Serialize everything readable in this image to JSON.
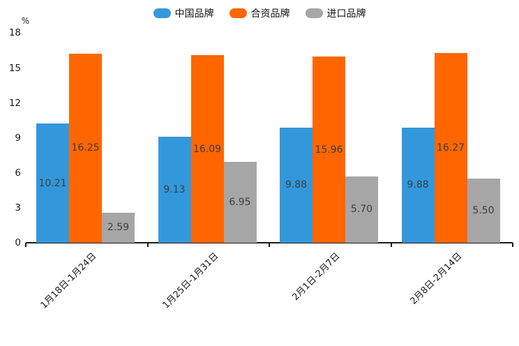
{
  "chart_data": {
    "type": "bar",
    "title": "",
    "categories": [
      "1月18日-1月24日",
      "1月25日-1月31日",
      "2月1日-2月7日",
      "2月8日-2月14日"
    ],
    "series": [
      {
        "name": "中国品牌",
        "color": "#3398DB",
        "values": [
          10.21,
          9.13,
          9.88,
          9.88
        ]
      },
      {
        "name": "合资品牌",
        "color": "#FF6600",
        "values": [
          16.25,
          16.09,
          15.96,
          16.27
        ]
      },
      {
        "name": "进口品牌",
        "color": "#A6A6A6",
        "values": [
          2.59,
          6.95,
          5.7,
          5.5
        ]
      }
    ],
    "ylabel": "%",
    "yticks": [
      0,
      3,
      6,
      9,
      12,
      15,
      18
    ],
    "ylim": [
      0,
      18
    ],
    "legend_position": "top",
    "grid": false,
    "value_label_decimals": 2,
    "axis_color": "#1a1a1a",
    "value_label_color": "#3d3d3d"
  }
}
